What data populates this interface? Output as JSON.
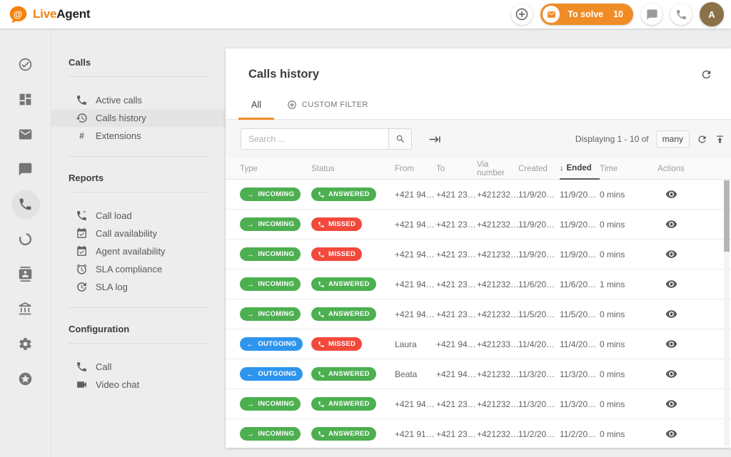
{
  "colors": {
    "accent": "#F08C26",
    "logo_orange": "#F5820D",
    "green": "#4CAF50",
    "red": "#F2493B",
    "blue": "#2E95EE",
    "avatar_bg": "#8A7148"
  },
  "topbar": {
    "logo_part1": "Live",
    "logo_part2": "Agent",
    "to_solve_label": "To solve",
    "to_solve_count": "10",
    "avatar_letter": "A"
  },
  "left_rail": {
    "items": [
      {
        "icon": "check-circle"
      },
      {
        "icon": "dashboard"
      },
      {
        "icon": "mail"
      },
      {
        "icon": "chat"
      },
      {
        "icon": "phone",
        "active": true
      },
      {
        "icon": "ring"
      },
      {
        "icon": "contacts"
      },
      {
        "icon": "bank"
      },
      {
        "icon": "gear"
      },
      {
        "icon": "star-circle"
      }
    ]
  },
  "sidebar": {
    "sections": [
      {
        "title": "Calls",
        "items": [
          {
            "icon": "phone",
            "label": "Active calls"
          },
          {
            "icon": "history",
            "label": "Calls history",
            "active": true
          },
          {
            "icon": "hash",
            "label": "Extensions"
          }
        ]
      },
      {
        "title": "Reports",
        "items": [
          {
            "icon": "call-load",
            "label": "Call load"
          },
          {
            "icon": "calendar-check",
            "label": "Call availability"
          },
          {
            "icon": "calendar-check",
            "label": "Agent availability"
          },
          {
            "icon": "alarm",
            "label": "SLA compliance"
          },
          {
            "icon": "sla-log",
            "label": "SLA log"
          }
        ]
      },
      {
        "title": "Configuration",
        "items": [
          {
            "icon": "phone",
            "label": "Call"
          },
          {
            "icon": "videocam",
            "label": "Video chat"
          }
        ]
      }
    ]
  },
  "main": {
    "title": "Calls history",
    "tabs": [
      {
        "label": "All",
        "active": true
      },
      {
        "label": "CUSTOM FILTER",
        "icon": "circle-plus"
      }
    ],
    "toolbar": {
      "search_placeholder": "Search ...",
      "displaying_label": "Displaying 1 - 10 of",
      "page_size": "many"
    },
    "table": {
      "columns": [
        {
          "label": "Type"
        },
        {
          "label": "Status"
        },
        {
          "label": "From"
        },
        {
          "label": "To"
        },
        {
          "label": "Via number"
        },
        {
          "label": "Created"
        },
        {
          "label": "Ended",
          "sorted": true
        },
        {
          "label": "Time"
        },
        {
          "label": "Actions",
          "align": "center"
        }
      ],
      "rows": [
        {
          "type": "INCOMING",
          "status": "ANSWERED",
          "from": "+421 94…",
          "to": "+421 23…",
          "via": "+421232…",
          "created": "11/9/20…",
          "ended": "11/9/20…",
          "time": "0 mins"
        },
        {
          "type": "INCOMING",
          "status": "MISSED",
          "from": "+421 94…",
          "to": "+421 23…",
          "via": "+421232…",
          "created": "11/9/20…",
          "ended": "11/9/20…",
          "time": "0 mins"
        },
        {
          "type": "INCOMING",
          "status": "MISSED",
          "from": "+421 94…",
          "to": "+421 23…",
          "via": "+421232…",
          "created": "11/9/20…",
          "ended": "11/9/20…",
          "time": "0 mins"
        },
        {
          "type": "INCOMING",
          "status": "ANSWERED",
          "from": "+421 94…",
          "to": "+421 23…",
          "via": "+421232…",
          "created": "11/6/20…",
          "ended": "11/6/20…",
          "time": "1 mins"
        },
        {
          "type": "INCOMING",
          "status": "ANSWERED",
          "from": "+421 94…",
          "to": "+421 23…",
          "via": "+421232…",
          "created": "11/5/20…",
          "ended": "11/5/20…",
          "time": "0 mins"
        },
        {
          "type": "OUTGOING",
          "status": "MISSED",
          "from": "Laura",
          "to": "+421 94…",
          "via": "+421233…",
          "created": "11/4/20…",
          "ended": "11/4/20…",
          "time": "0 mins"
        },
        {
          "type": "OUTGOING",
          "status": "ANSWERED",
          "from": "Beata",
          "to": "+421 94…",
          "via": "+421232…",
          "created": "11/3/20…",
          "ended": "11/3/20…",
          "time": "0 mins"
        },
        {
          "type": "INCOMING",
          "status": "ANSWERED",
          "from": "+421 94…",
          "to": "+421 23…",
          "via": "+421232…",
          "created": "11/3/20…",
          "ended": "11/3/20…",
          "time": "0 mins"
        },
        {
          "type": "INCOMING",
          "status": "ANSWERED",
          "from": "+421 91…",
          "to": "+421 23…",
          "via": "+421232…",
          "created": "11/2/20…",
          "ended": "11/2/20…",
          "time": "0 mins"
        }
      ]
    }
  }
}
